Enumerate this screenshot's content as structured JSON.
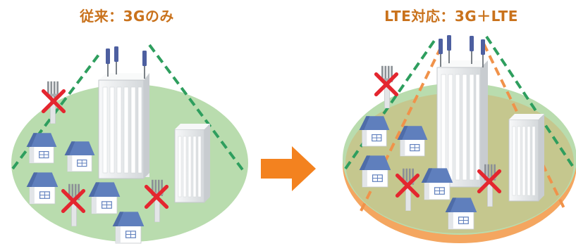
{
  "titles": {
    "before": "従来：3Gのみ",
    "after": "LTE対応：3G＋LTE"
  },
  "icons": {
    "arrow": "right-arrow-icon",
    "no_station": "red-x-icon"
  },
  "colors": {
    "title_text": "#c9721c",
    "ground_green": "#b9dcae",
    "ground_olive": "#c5c78e",
    "ground_edge_orange": "#f4a660",
    "coverage_3g": "#2e9e5e",
    "coverage_lte": "#f0924a",
    "arrow": "#f3821f",
    "cross": "#e4262f",
    "roof": "#5f7fbd",
    "building": "#dfe2e4"
  }
}
